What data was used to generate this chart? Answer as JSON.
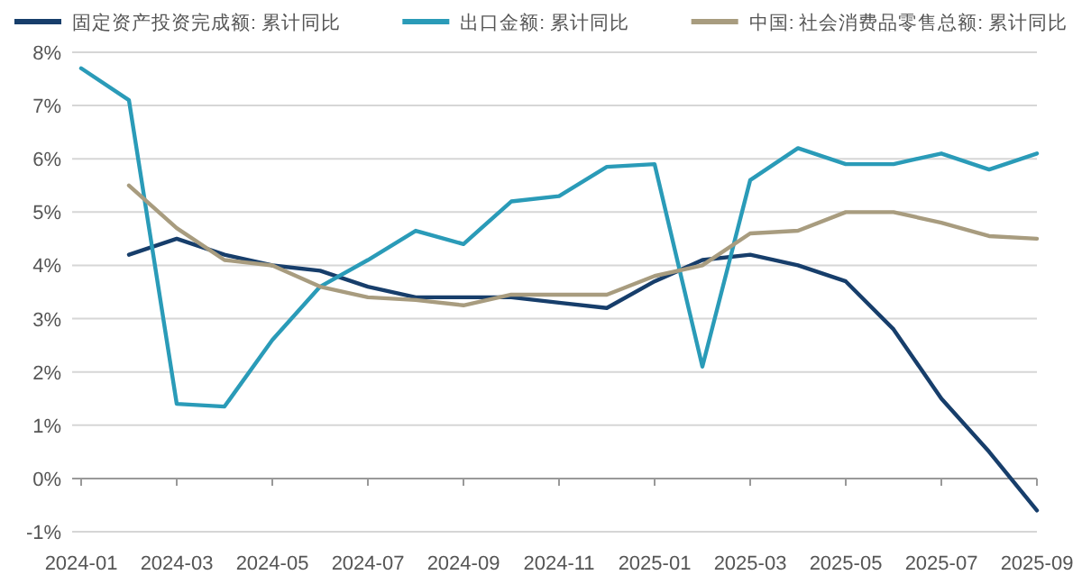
{
  "chart_data": {
    "type": "line",
    "categories": [
      "2024-01",
      null,
      "2024-03",
      null,
      "2024-05",
      null,
      "2024-07",
      null,
      "2024-09",
      null,
      "2024-11",
      null,
      "2025-01",
      null,
      "2025-03",
      null,
      "2025-05",
      null,
      "2025-07",
      null,
      "2025-09"
    ],
    "series": [
      {
        "name": "固定资产投资完成额: 累计同比",
        "color": "#173e6b",
        "values": [
          null,
          4.2,
          4.5,
          4.2,
          4.0,
          3.9,
          3.6,
          3.4,
          3.4,
          3.4,
          3.3,
          3.2,
          3.7,
          4.1,
          4.2,
          4.0,
          3.7,
          2.8,
          1.5,
          0.5,
          -0.6
        ]
      },
      {
        "name": "出口金额: 累计同比",
        "color": "#2a9bb8",
        "values": [
          7.7,
          7.1,
          1.4,
          1.35,
          2.6,
          3.6,
          4.1,
          4.65,
          4.4,
          5.2,
          5.3,
          5.85,
          5.9,
          2.1,
          5.6,
          6.2,
          5.9,
          5.9,
          6.1,
          5.8,
          6.1
        ]
      },
      {
        "name": "中国: 社会消费品零售总额: 累计同比",
        "color": "#a89c7f",
        "values": [
          null,
          5.5,
          4.7,
          4.1,
          4.0,
          3.6,
          3.4,
          3.35,
          3.25,
          3.45,
          3.45,
          3.45,
          3.8,
          4.0,
          4.6,
          4.65,
          5.0,
          5.0,
          4.8,
          4.55,
          4.5
        ]
      }
    ],
    "ylim": [
      -1,
      8
    ],
    "yticks": [
      {
        "value": -1,
        "label": "-1%"
      },
      {
        "value": 0,
        "label": "0%"
      },
      {
        "value": 1,
        "label": "1%"
      },
      {
        "value": 2,
        "label": "2%"
      },
      {
        "value": 3,
        "label": "3%"
      },
      {
        "value": 4,
        "label": "4%"
      },
      {
        "value": 5,
        "label": "5%"
      },
      {
        "value": 6,
        "label": "6%"
      },
      {
        "value": 7,
        "label": "7%"
      },
      {
        "value": 8,
        "label": "8%"
      }
    ],
    "grid": "y",
    "legend": "top",
    "marker": "none",
    "line_style": "solid"
  }
}
